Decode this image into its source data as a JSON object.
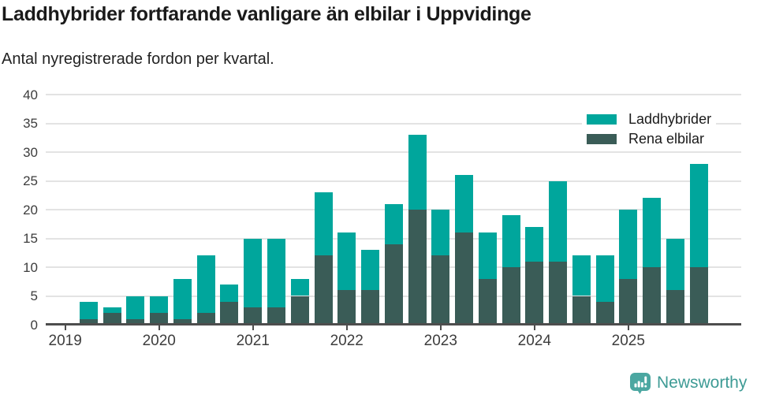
{
  "header": {
    "title": "Laddhybrider fortfarande vanligare än elbilar i Uppvidinge",
    "subtitle": "Antal nyregistrerade fordon per kvartal."
  },
  "chart_data": {
    "type": "bar",
    "stacked": true,
    "title": "Laddhybrider fortfarande vanligare än elbilar i Uppvidinge",
    "subtitle": "Antal nyregistrerade fordon per kvartal.",
    "categories": [
      "2019 Q2",
      "2019 Q3",
      "2019 Q4",
      "2020 Q1",
      "2020 Q2",
      "2020 Q3",
      "2020 Q4",
      "2021 Q1",
      "2021 Q2",
      "2021 Q3",
      "2021 Q4",
      "2022 Q1",
      "2022 Q2",
      "2022 Q3",
      "2022 Q4",
      "2023 Q1",
      "2023 Q2",
      "2023 Q3",
      "2023 Q4",
      "2024 Q1",
      "2024 Q2",
      "2024 Q3",
      "2024 Q4",
      "2025 Q1",
      "2025 Q2",
      "2025 Q3",
      "2025 Q4"
    ],
    "series": [
      {
        "name": "Laddhybrider",
        "color": "#00a69c",
        "stack_position": "top",
        "values": [
          3,
          1,
          4,
          3,
          7,
          10,
          3,
          12,
          12,
          3,
          11,
          10,
          7,
          7,
          13,
          8,
          10,
          8,
          9,
          6,
          14,
          7,
          8,
          12,
          12,
          9,
          18
        ]
      },
      {
        "name": "Rena elbilar",
        "color": "#3a5c57",
        "stack_position": "bottom",
        "values": [
          1,
          2,
          1,
          2,
          1,
          2,
          4,
          3,
          3,
          5,
          12,
          6,
          6,
          14,
          20,
          12,
          16,
          8,
          10,
          11,
          11,
          5,
          4,
          8,
          10,
          6,
          10
        ]
      }
    ],
    "stack_totals": [
      4,
      3,
      5,
      5,
      8,
      12,
      7,
      15,
      15,
      8,
      23,
      16,
      13,
      21,
      33,
      20,
      26,
      16,
      19,
      17,
      25,
      12,
      12,
      20,
      22,
      15,
      28
    ],
    "ylim": [
      0,
      40
    ],
    "yticks": [
      0,
      5,
      10,
      15,
      20,
      25,
      30,
      35,
      40
    ],
    "xticks": [
      "2019",
      "2020",
      "2021",
      "2022",
      "2023",
      "2024",
      "2025"
    ],
    "grid": "horizontal",
    "legend_position": "top-right"
  },
  "footer": {
    "brand": "Newsworthy"
  },
  "icons": {
    "brand_logo": "newsworthy-speech-bubble-bar-chart-icon"
  },
  "colors": {
    "laddhybrider": "#00a69c",
    "rena_elbilar": "#3a5c57",
    "brand_teal": "#3e9b95",
    "logo_fill": "#4ba7a1"
  }
}
